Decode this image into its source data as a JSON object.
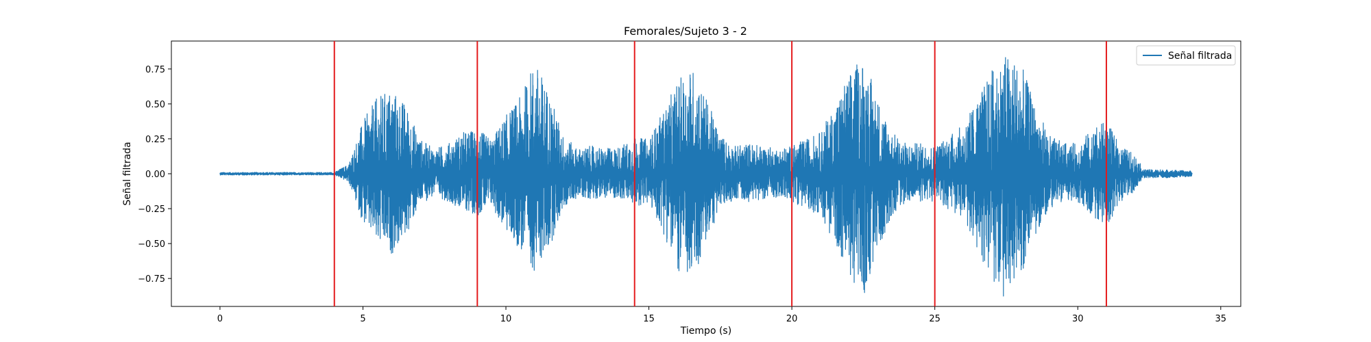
{
  "chart_data": {
    "type": "line",
    "title": "Femorales/Sujeto 3 - 2",
    "xlabel": "Tiempo (s)",
    "ylabel": "Señal filtrada",
    "xlim": [
      -1.7,
      35.7
    ],
    "ylim": [
      -0.95,
      0.95
    ],
    "xticks": [
      0,
      5,
      10,
      15,
      20,
      25,
      30,
      35
    ],
    "xtick_labels": [
      "0",
      "5",
      "10",
      "15",
      "20",
      "25",
      "30",
      "35"
    ],
    "yticks": [
      -0.75,
      -0.5,
      -0.25,
      0.0,
      0.25,
      0.5,
      0.75
    ],
    "ytick_labels": [
      "−0.75",
      "−0.50",
      "−0.25",
      "0.00",
      "0.25",
      "0.50",
      "0.75"
    ],
    "grid": false,
    "legend_position": "top-right",
    "series": [
      {
        "name": "Señal filtrada",
        "color": "#1f77b4",
        "x_range": [
          0,
          34
        ],
        "envelope_x": [
          0,
          4.0,
          4.5,
          5.0,
          5.5,
          6.0,
          6.5,
          7.0,
          7.5,
          8.0,
          8.5,
          9.0,
          9.5,
          10.0,
          10.5,
          11.0,
          11.5,
          12.0,
          12.5,
          13.0,
          13.5,
          14.0,
          14.5,
          15.0,
          15.5,
          16.0,
          16.5,
          17.0,
          17.5,
          18.0,
          18.5,
          19.0,
          19.5,
          20.0,
          20.5,
          21.0,
          21.5,
          22.0,
          22.5,
          23.0,
          23.5,
          24.0,
          24.5,
          25.0,
          25.5,
          26.0,
          26.5,
          27.0,
          27.5,
          28.0,
          28.5,
          29.0,
          29.5,
          30.0,
          30.5,
          31.0,
          31.5,
          32.0,
          32.3,
          33.0,
          34.0
        ],
        "envelope_max": [
          0.01,
          0.01,
          0.07,
          0.38,
          0.55,
          0.62,
          0.5,
          0.25,
          0.18,
          0.22,
          0.3,
          0.32,
          0.25,
          0.42,
          0.55,
          0.82,
          0.6,
          0.28,
          0.18,
          0.2,
          0.18,
          0.2,
          0.26,
          0.25,
          0.45,
          0.66,
          0.78,
          0.55,
          0.28,
          0.2,
          0.22,
          0.2,
          0.18,
          0.2,
          0.25,
          0.3,
          0.5,
          0.72,
          0.85,
          0.55,
          0.3,
          0.22,
          0.22,
          0.2,
          0.28,
          0.35,
          0.55,
          0.75,
          0.87,
          0.8,
          0.5,
          0.28,
          0.22,
          0.22,
          0.32,
          0.38,
          0.2,
          0.14,
          0.03,
          0.03,
          0.02
        ],
        "envelope_min": [
          -0.01,
          -0.01,
          -0.06,
          -0.35,
          -0.52,
          -0.58,
          -0.45,
          -0.22,
          -0.16,
          -0.2,
          -0.26,
          -0.3,
          -0.24,
          -0.42,
          -0.55,
          -0.7,
          -0.55,
          -0.25,
          -0.17,
          -0.18,
          -0.17,
          -0.18,
          -0.23,
          -0.22,
          -0.42,
          -0.7,
          -0.8,
          -0.5,
          -0.25,
          -0.18,
          -0.2,
          -0.18,
          -0.17,
          -0.2,
          -0.25,
          -0.3,
          -0.5,
          -0.72,
          -0.92,
          -0.55,
          -0.3,
          -0.2,
          -0.2,
          -0.2,
          -0.26,
          -0.33,
          -0.55,
          -0.78,
          -0.9,
          -0.75,
          -0.45,
          -0.25,
          -0.2,
          -0.2,
          -0.3,
          -0.38,
          -0.2,
          -0.13,
          -0.03,
          -0.03,
          -0.02
        ]
      }
    ],
    "vertical_lines": {
      "color": "#e41a1c",
      "x": [
        4,
        9,
        14.5,
        20,
        25,
        31
      ]
    }
  }
}
